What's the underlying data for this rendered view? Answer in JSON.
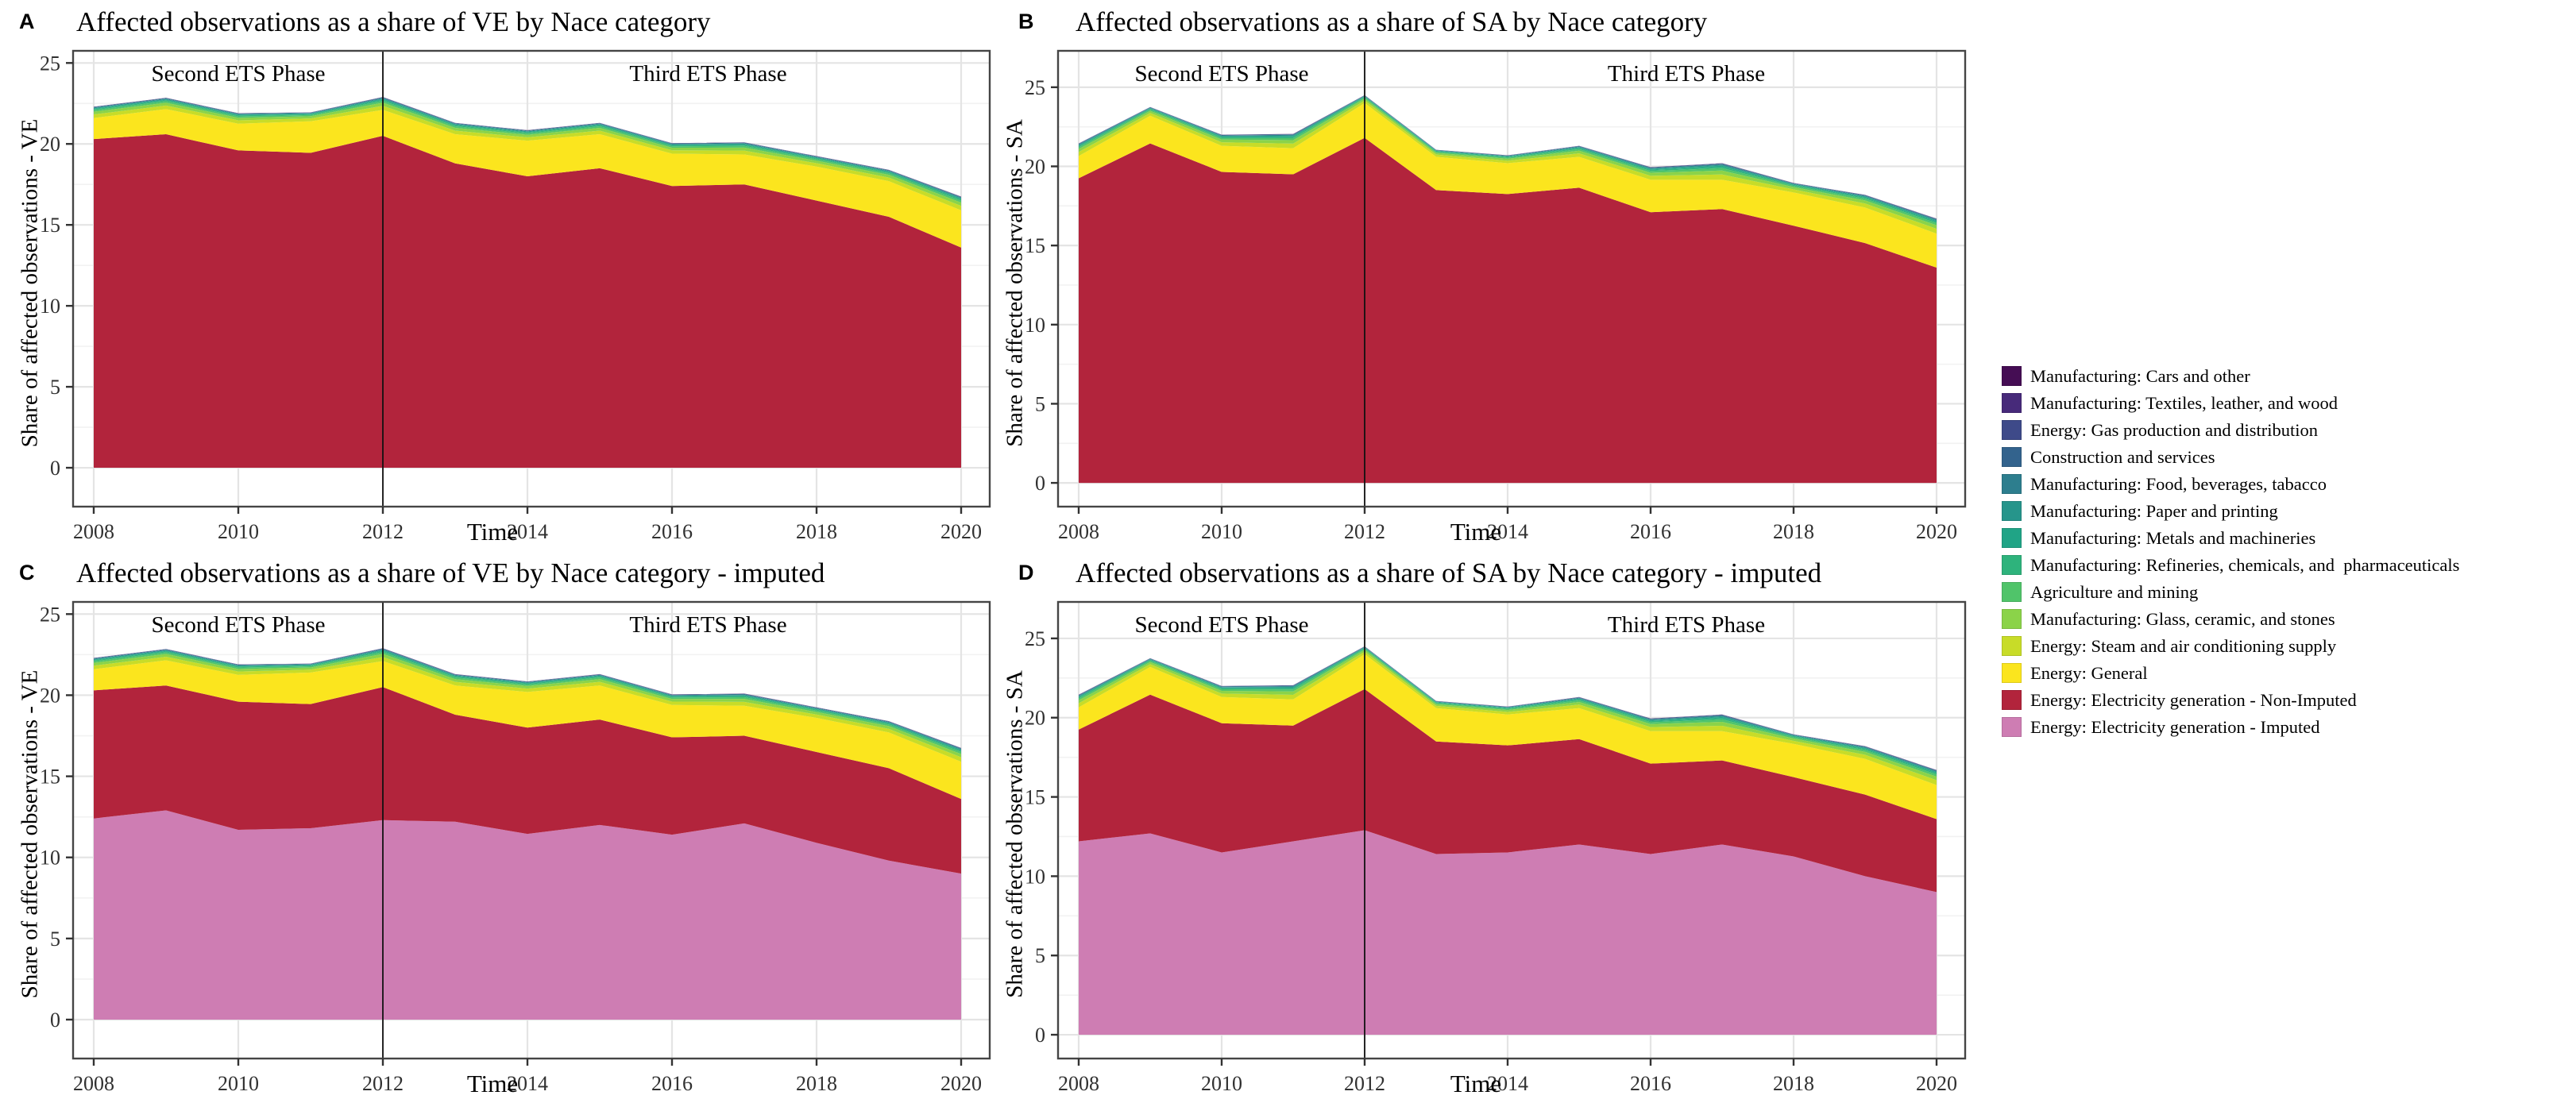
{
  "panels": [
    {
      "letter": "A",
      "title": "Affected observations as a share of VE by Nace category",
      "ylabel": "Share of affected observations - VE",
      "xlabel": "Time",
      "dataset": "VE",
      "split_imputed": false
    },
    {
      "letter": "B",
      "title": "Affected observations as a share of SA by Nace category",
      "ylabel": "Share of affected observations - SA",
      "xlabel": "Time",
      "dataset": "SA",
      "split_imputed": false
    },
    {
      "letter": "C",
      "title": "Affected observations as a share of VE by Nace category - imputed",
      "ylabel": "Share of affected observations - VE",
      "xlabel": "Time",
      "dataset": "VE",
      "split_imputed": true
    },
    {
      "letter": "D",
      "title": "Affected observations as a share of SA by Nace category - imputed",
      "ylabel": "Share of affected observations - SA",
      "xlabel": "Time",
      "dataset": "SA",
      "split_imputed": true
    }
  ],
  "annotations": {
    "second_phase": "Second ETS Phase",
    "third_phase": "Third ETS Phase",
    "second_phase_center_year": 2010,
    "third_phase_center_year": 2016.5,
    "divider_year": 2012
  },
  "axes": {
    "x_ticks": [
      2008,
      2010,
      2012,
      2014,
      2016,
      2018,
      2020
    ],
    "y_ticks": [
      0,
      5,
      10,
      15,
      20,
      25
    ],
    "minor_y_ticks": [
      2.5,
      7.5,
      12.5,
      17.5,
      22.5
    ]
  },
  "chart_data": {
    "type": "area",
    "stacked": true,
    "x": [
      2008,
      2009,
      2010,
      2011,
      2012,
      2013,
      2014,
      2015,
      2016,
      2017,
      2018,
      2019,
      2020
    ],
    "xlabel": "Time",
    "grid": "on",
    "legend_position": "right-outside",
    "datasets": {
      "VE": {
        "ylim_ticks": [
          0,
          25
        ],
        "electricity_total": [
          20.3,
          20.6,
          19.6,
          19.45,
          20.5,
          18.8,
          18.0,
          18.5,
          17.4,
          17.5,
          16.5,
          15.5,
          13.6
        ],
        "electricity_imputed": [
          12.4,
          12.9,
          11.7,
          11.8,
          12.3,
          12.2,
          11.45,
          12.0,
          11.4,
          12.1,
          10.9,
          9.8,
          9.0
        ],
        "energy_general": [
          1.3,
          1.55,
          1.65,
          1.95,
          1.6,
          1.8,
          2.2,
          2.1,
          2.0,
          1.85,
          2.1,
          2.2,
          2.3
        ],
        "minor_total": [
          0.7,
          0.7,
          0.65,
          0.55,
          0.8,
          0.7,
          0.65,
          0.7,
          0.65,
          0.75,
          0.65,
          0.7,
          0.85
        ],
        "stack_total": [
          22.3,
          22.85,
          21.9,
          21.95,
          22.9,
          21.3,
          20.85,
          21.3,
          20.05,
          20.1,
          19.25,
          18.4,
          16.75
        ]
      },
      "SA": {
        "ylim_ticks": [
          0,
          25
        ],
        "electricity_total": [
          19.25,
          21.45,
          19.65,
          19.5,
          21.8,
          18.5,
          18.25,
          18.65,
          17.1,
          17.3,
          16.25,
          15.15,
          13.6
        ],
        "electricity_imputed": [
          12.2,
          12.7,
          11.5,
          12.2,
          12.9,
          11.4,
          11.5,
          12.0,
          11.4,
          12.0,
          11.25,
          10.0,
          9.0
        ],
        "energy_general": [
          1.4,
          1.75,
          1.65,
          1.65,
          2.2,
          2.1,
          1.95,
          1.95,
          2.05,
          1.85,
          2.1,
          2.25,
          2.15
        ],
        "minor_total": [
          0.8,
          0.55,
          0.7,
          0.9,
          0.5,
          0.45,
          0.5,
          0.7,
          0.8,
          1.05,
          0.6,
          0.8,
          0.95
        ],
        "stack_total": [
          21.45,
          23.75,
          22.0,
          22.05,
          24.5,
          21.05,
          20.7,
          21.3,
          19.95,
          20.2,
          18.95,
          18.2,
          16.7
        ]
      }
    },
    "minor_series_order_bottom_to_top": [
      "steam",
      "glass",
      "agriculture",
      "refineries",
      "metals",
      "paper",
      "food",
      "construction",
      "gas",
      "textiles",
      "cars"
    ],
    "minor_series_fractions": {
      "steam": 0.32,
      "glass": 0.24,
      "agriculture": 0.14,
      "refineries": 0.09,
      "metals": 0.06,
      "paper": 0.05,
      "food": 0.04,
      "construction": 0.03,
      "gas": 0.018,
      "textiles": 0.007,
      "cars": 0.005
    }
  },
  "legend": {
    "items": [
      {
        "key": "cars",
        "label": "Manufacturing: Cars and other",
        "color": "#450d54"
      },
      {
        "key": "textiles",
        "label": "Manufacturing: Textiles, leather, and wood",
        "color": "#472a7a"
      },
      {
        "key": "gas",
        "label": "Energy: Gas production and distribution",
        "color": "#3e4a89"
      },
      {
        "key": "construction",
        "label": "Construction and services",
        "color": "#33638d"
      },
      {
        "key": "food",
        "label": "Manufacturing: Food, beverages, tabacco",
        "color": "#2d7e8e"
      },
      {
        "key": "paper",
        "label": "Manufacturing: Paper and printing",
        "color": "#26958b"
      },
      {
        "key": "metals",
        "label": "Manufacturing: Metals and machineries",
        "color": "#20a486"
      },
      {
        "key": "refineries",
        "label": "Manufacturing: Refineries, chemicals, and  pharmaceuticals",
        "color": "#2eb37c"
      },
      {
        "key": "agriculture",
        "label": "Agriculture and mining",
        "color": "#50c46a"
      },
      {
        "key": "glass",
        "label": "Manufacturing: Glass, ceramic, and stones",
        "color": "#8bd349"
      },
      {
        "key": "steam",
        "label": "Energy: Steam and air conditioning supply",
        "color": "#c8dc28"
      },
      {
        "key": "general",
        "label": "Energy: General",
        "color": "#fbe51e"
      },
      {
        "key": "nonimputed",
        "label": "Energy: Electricity generation - Non-Imputed",
        "color": "#b2243c"
      },
      {
        "key": "imputed",
        "label": "Energy: Electricity generation - Imputed",
        "color": "#ce7db3"
      }
    ]
  },
  "style": {
    "plot_border": "#454545",
    "grid_major": "#e4e4e4",
    "grid_minor": "#f2f2f2",
    "tick_color": "#333333",
    "divider_color": "#111111"
  }
}
